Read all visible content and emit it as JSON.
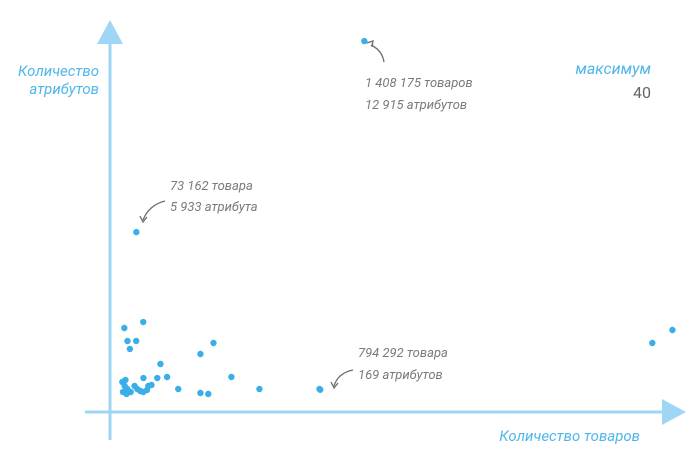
{
  "chart_data": {
    "type": "scatter",
    "x_label": "Количество товаров",
    "y_label": [
      "Количество",
      "атрибутов"
    ],
    "stat_label": "максимум",
    "stat_value": 40,
    "log_x": true,
    "color": "#3aaee8",
    "xlim": [
      50000,
      100000000
    ],
    "ylim": [
      0,
      14000
    ],
    "x": [
      1408175,
      73162,
      794292,
      76600000,
      59000000,
      62600,
      80000,
      65200,
      73000,
      67300,
      100000,
      168000,
      199000,
      251000,
      361000,
      787000,
      96000,
      109000,
      126000,
      168000,
      186000,
      80200,
      85500,
      61000,
      62900,
      65000,
      61500,
      64400,
      68000,
      74000,
      77000,
      80000,
      84000,
      89000,
      63500,
      71500
    ],
    "values": [
      12915,
      5933,
      169,
      2354,
      1879,
      2427,
      2646,
      1952,
      1952,
      1660,
      1111,
      1477,
      1879,
      636,
      197,
      197,
      599,
      636,
      197,
      51,
      15,
      599,
      307,
      453,
      307,
      197,
      88,
      15,
      88,
      197,
      124,
      88,
      161,
      344,
      526,
      307
    ],
    "annotations": [
      {
        "text": [
          "1 408 175 товаров",
          "12 915 атрибутов"
        ]
      },
      {
        "text": [
          "73 162 товара",
          "5 933 атрибута"
        ]
      },
      {
        "text": [
          "794 292 товара",
          "169 атрибутов"
        ]
      }
    ]
  }
}
